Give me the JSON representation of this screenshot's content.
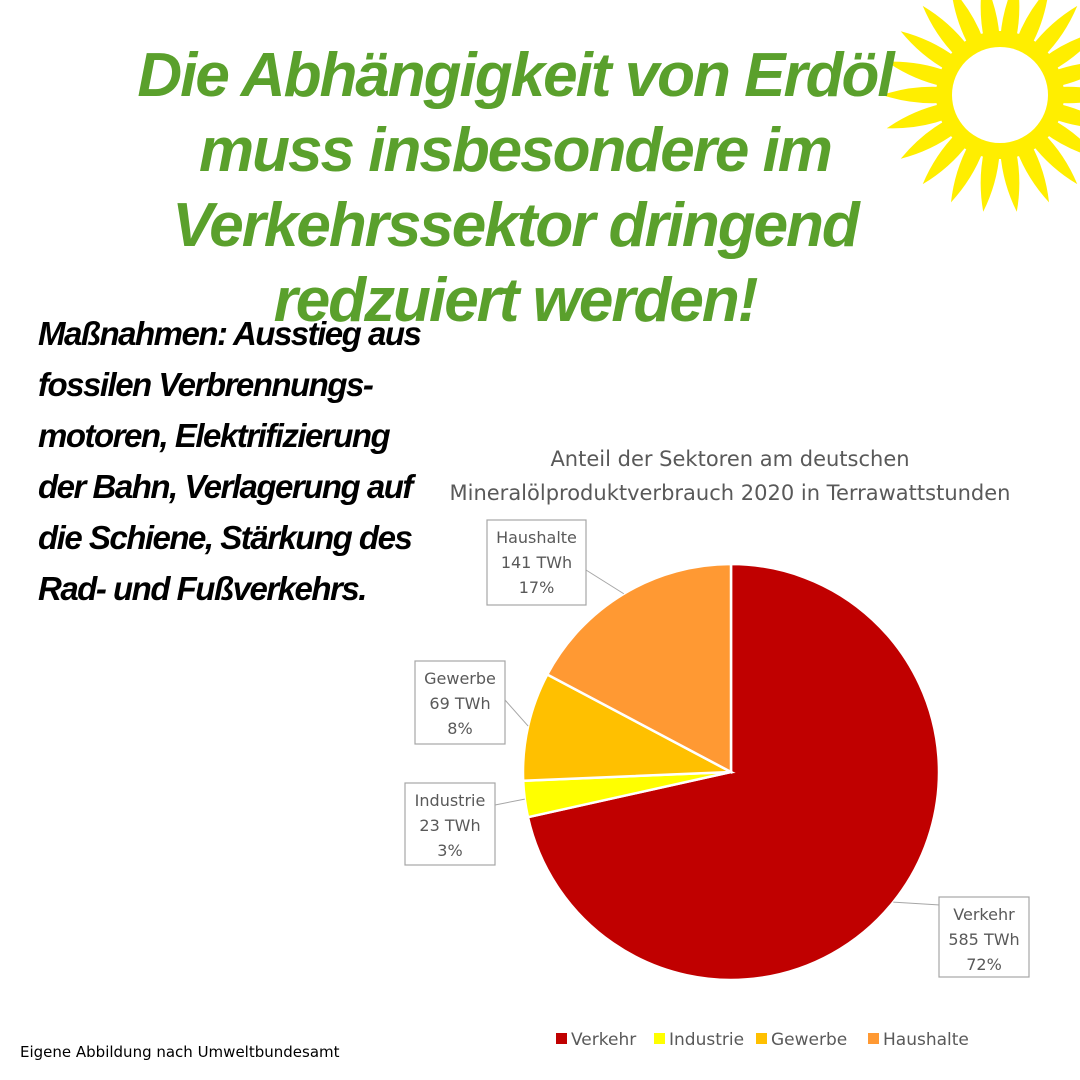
{
  "headline": "Die Abhängigkeit von Erdöl muss insbesondere im Verkehrssektor dringend redzuiert werden!",
  "measures": "Maßnahmen: Ausstieg aus fossilen Verbrennungs-motoren, Elektrifizierung der Bahn, Verlagerung auf die Schiene, Stärkung des Rad- und Fußverkehrs.",
  "source": "Eigene Abbildung nach Umweltbundesamt",
  "colors": {
    "headline": "#5aa02c",
    "sun": "#ffee00",
    "label_text": "#595959"
  },
  "chart_data": {
    "type": "pie",
    "title": "Anteil der Sektoren am deutschen Mineralölproduktverbrauch  2020 in Terrawattstunden",
    "unit": "TWh",
    "slices": [
      {
        "name": "Verkehr",
        "value": 585,
        "percent": "72%",
        "color": "#c00000"
      },
      {
        "name": "Industrie",
        "value": 23,
        "percent": "3%",
        "color": "#ffff00"
      },
      {
        "name": "Gewerbe",
        "value": 69,
        "percent": "8%",
        "color": "#ffc000"
      },
      {
        "name": "Haushalte",
        "value": 141,
        "percent": "17%",
        "color": "#ff9933"
      }
    ],
    "legend": [
      "Verkehr",
      "Industrie",
      "Gewerbe",
      "Haushalte"
    ],
    "legend_position": "bottom"
  }
}
